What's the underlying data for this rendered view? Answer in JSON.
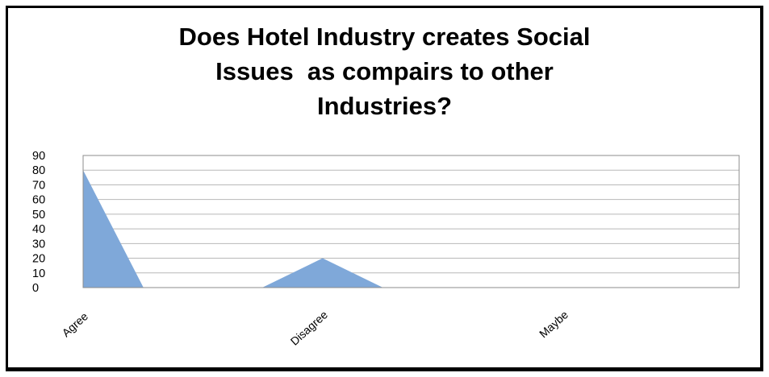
{
  "chart_data": {
    "type": "area",
    "title_lines": [
      "Does Hotel Industry creates Social",
      "Issues  as compairs to other",
      "Industries?"
    ],
    "categories": [
      "Agree",
      "Disagree",
      "Maybe"
    ],
    "values": [
      80,
      20,
      0
    ],
    "xlabel": "",
    "ylabel": "",
    "ylim": [
      0,
      90
    ],
    "yticks": [
      0,
      10,
      20,
      30,
      40,
      50,
      60,
      70,
      80,
      90
    ],
    "grid": true,
    "legend": "none",
    "area_color": "#7FA8D9",
    "grid_color": "#B8B8B8",
    "plot_border_color": "#8C8C8C"
  }
}
